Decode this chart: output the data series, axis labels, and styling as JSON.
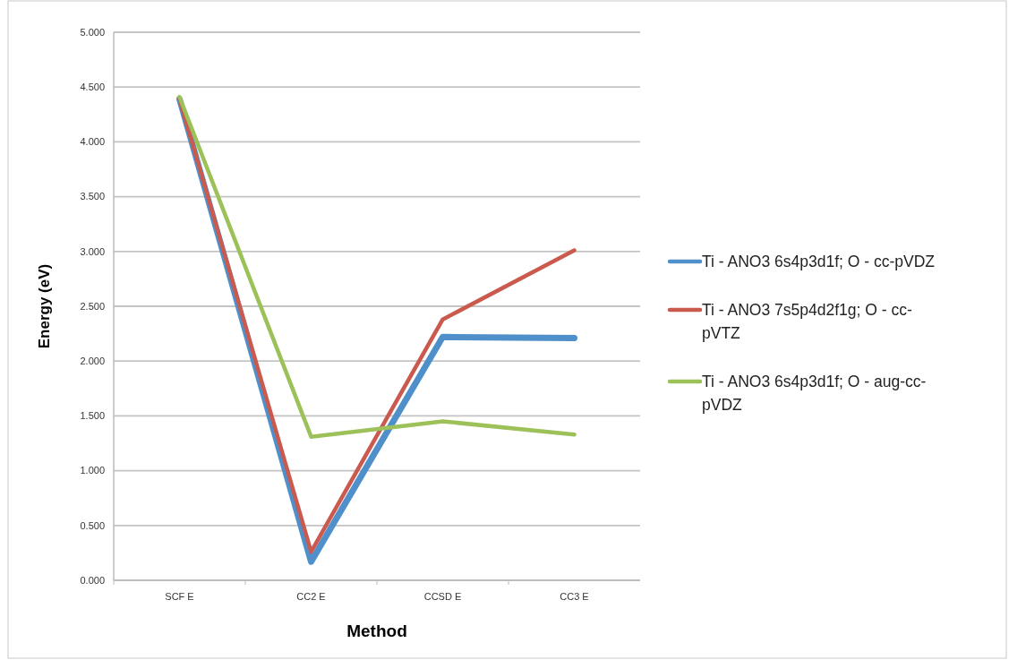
{
  "chart_data": {
    "type": "line",
    "xlabel": "Method",
    "ylabel": "Energy (eV)",
    "categories": [
      "SCF E",
      "CC2 E",
      "CCSD E",
      "CC3 E"
    ],
    "ylim": [
      0,
      5
    ],
    "yticks": [
      {
        "value": 0,
        "label": "0.000"
      },
      {
        "value": 0.5,
        "label": "0.500"
      },
      {
        "value": 1,
        "label": "1.000"
      },
      {
        "value": 1.5,
        "label": "1.500"
      },
      {
        "value": 2,
        "label": "2.000"
      },
      {
        "value": 2.5,
        "label": "2.500"
      },
      {
        "value": 3,
        "label": "3.000"
      },
      {
        "value": 3.5,
        "label": "3.500"
      },
      {
        "value": 4,
        "label": "4.000"
      },
      {
        "value": 4.5,
        "label": "4.500"
      },
      {
        "value": 5,
        "label": "5.000"
      }
    ],
    "grid": "y",
    "legend": "right",
    "marker": "none",
    "series": [
      {
        "name": "Ti - ANO3 6s4p3d1f; O - cc-pVDZ",
        "color": "#4f8fca",
        "values": [
          4.39,
          0.17,
          2.22,
          2.21
        ]
      },
      {
        "name": "Ti - ANO3 7s5p4d2f1g; O - cc-pVTZ",
        "color": "#cb5a4e",
        "values": [
          4.39,
          0.26,
          2.38,
          3.01
        ]
      },
      {
        "name": "Ti - ANO3 6s4p3d1f; O - aug-cc-pVDZ",
        "color": "#9cc158",
        "values": [
          4.41,
          1.31,
          1.45,
          1.33
        ]
      }
    ]
  }
}
